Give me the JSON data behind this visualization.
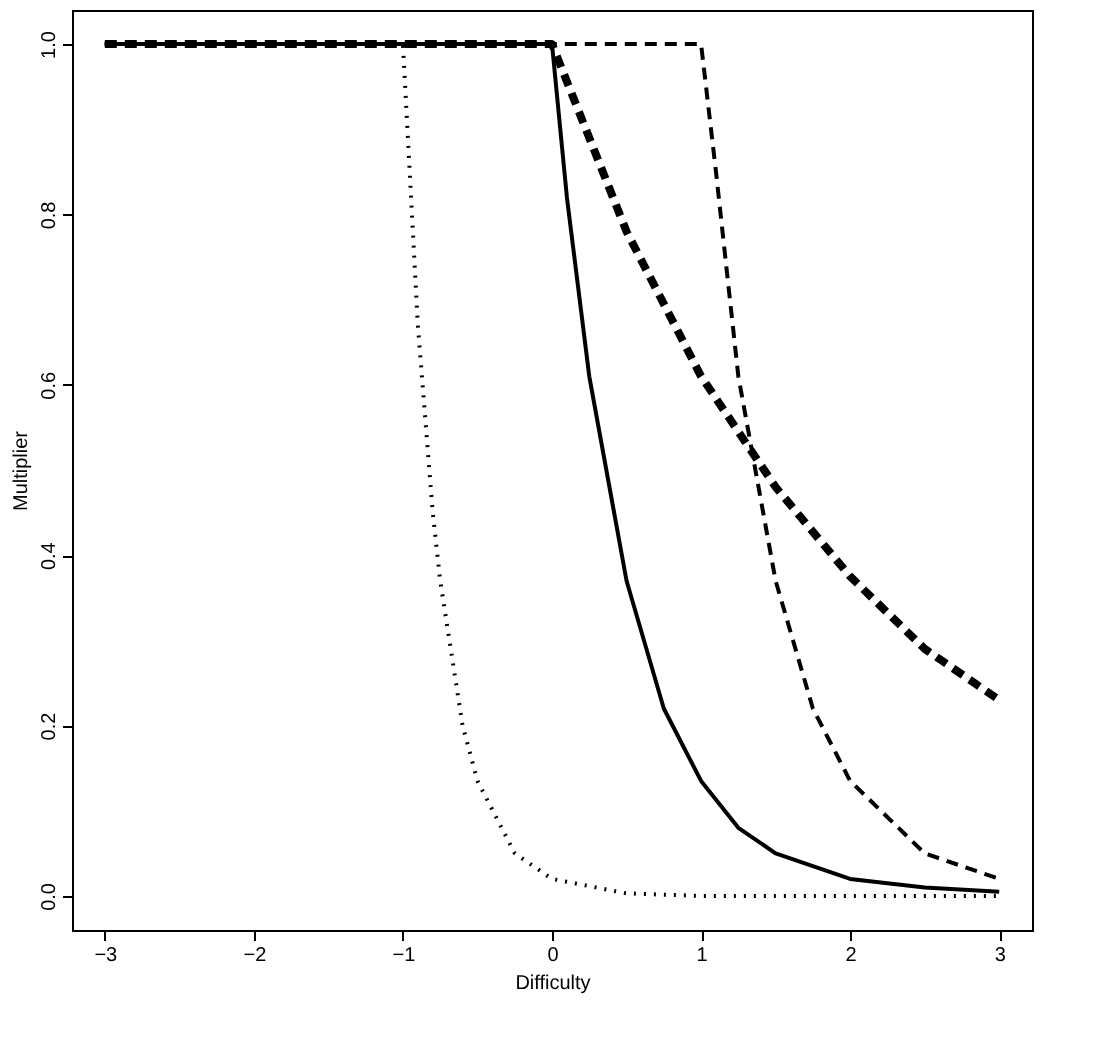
{
  "chart_data": {
    "type": "line",
    "xlabel": "Difficulty",
    "ylabel": "Multiplier",
    "xlim": [
      -3.22,
      3.22
    ],
    "ylim": [
      -0.04,
      1.04
    ],
    "xticks": [
      {
        "value": -3,
        "label": "−3"
      },
      {
        "value": -2,
        "label": "−2"
      },
      {
        "value": -1,
        "label": "−1"
      },
      0,
      1,
      2,
      3
    ],
    "yticks": [
      {
        "value": 0,
        "label": "0.0"
      },
      {
        "value": 0.2,
        "label": "0.2"
      },
      {
        "value": 0.4,
        "label": "0.4"
      },
      {
        "value": 0.6,
        "label": "0.6"
      },
      {
        "value": 0.8,
        "label": "0.8"
      },
      {
        "value": 1,
        "label": "1.0"
      }
    ],
    "grid": false,
    "marker": "none",
    "series": [
      {
        "color": "#000000",
        "line_style": "solid",
        "x": [
          -3,
          0,
          0.1,
          0.25,
          0.5,
          0.75,
          1,
          1.25,
          1.5,
          2,
          2.5,
          3
        ],
        "values": [
          1,
          1,
          0.82,
          0.61,
          0.37,
          0.22,
          0.135,
          0.08,
          0.05,
          0.02,
          0.01,
          0.005
        ]
      },
      {
        "color": "#000000",
        "line_style": "dotted",
        "x": [
          -3,
          -1,
          -0.9,
          -0.8,
          -0.75,
          -0.6,
          -0.5,
          -0.25,
          0,
          0.5,
          1,
          2,
          3
        ],
        "values": [
          1,
          1,
          0.67,
          0.45,
          0.37,
          0.2,
          0.135,
          0.05,
          0.02,
          0.003,
          0,
          0,
          0
        ]
      },
      {
        "color": "#000000",
        "line_style": "dashed",
        "x": [
          -3,
          1,
          1.1,
          1.25,
          1.5,
          1.75,
          2,
          2.5,
          3
        ],
        "values": [
          1,
          1,
          0.85,
          0.61,
          0.37,
          0.22,
          0.135,
          0.05,
          0.02
        ]
      },
      {
        "color": "#000000",
        "line_style": "dashed",
        "x": [
          -3,
          0,
          0.5,
          1,
          1.5,
          2,
          2.5,
          3
        ],
        "values": [
          1,
          1,
          0.78,
          0.61,
          0.48,
          0.375,
          0.29,
          0.23
        ]
      }
    ]
  }
}
